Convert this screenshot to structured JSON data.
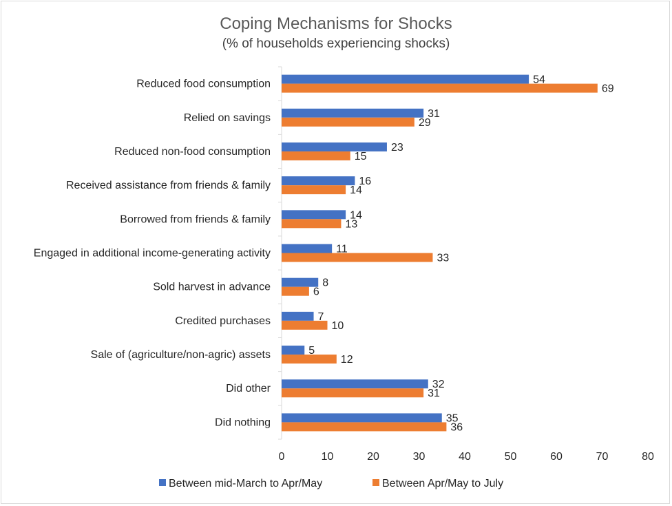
{
  "chart_data": {
    "type": "bar",
    "orientation": "horizontal",
    "title": "Coping Mechanisms for Shocks",
    "subtitle": "(% of households experiencing shocks)",
    "categories": [
      "Reduced food consumption",
      "Relied on savings",
      "Reduced non-food consumption",
      "Received assistance from friends & family",
      "Borrowed from friends & family",
      "Engaged in additional income-generating activity",
      "Sold harvest in advance",
      "Credited purchases",
      "Sale of (agriculture/non-agric) assets",
      "Did other",
      "Did nothing"
    ],
    "series": [
      {
        "name": "Between mid-March to Apr/May",
        "color": "#4472c4",
        "values": [
          54,
          31,
          23,
          16,
          14,
          11,
          8,
          7,
          5,
          32,
          35
        ]
      },
      {
        "name": "Between Apr/May to July",
        "color": "#ed7d31",
        "values": [
          69,
          29,
          15,
          14,
          13,
          33,
          6,
          10,
          12,
          31,
          36
        ]
      }
    ],
    "xlim": [
      0,
      80
    ],
    "xticks": [
      0,
      10,
      20,
      30,
      40,
      50,
      60,
      70,
      80
    ],
    "grid": false,
    "legend_position": "bottom"
  }
}
